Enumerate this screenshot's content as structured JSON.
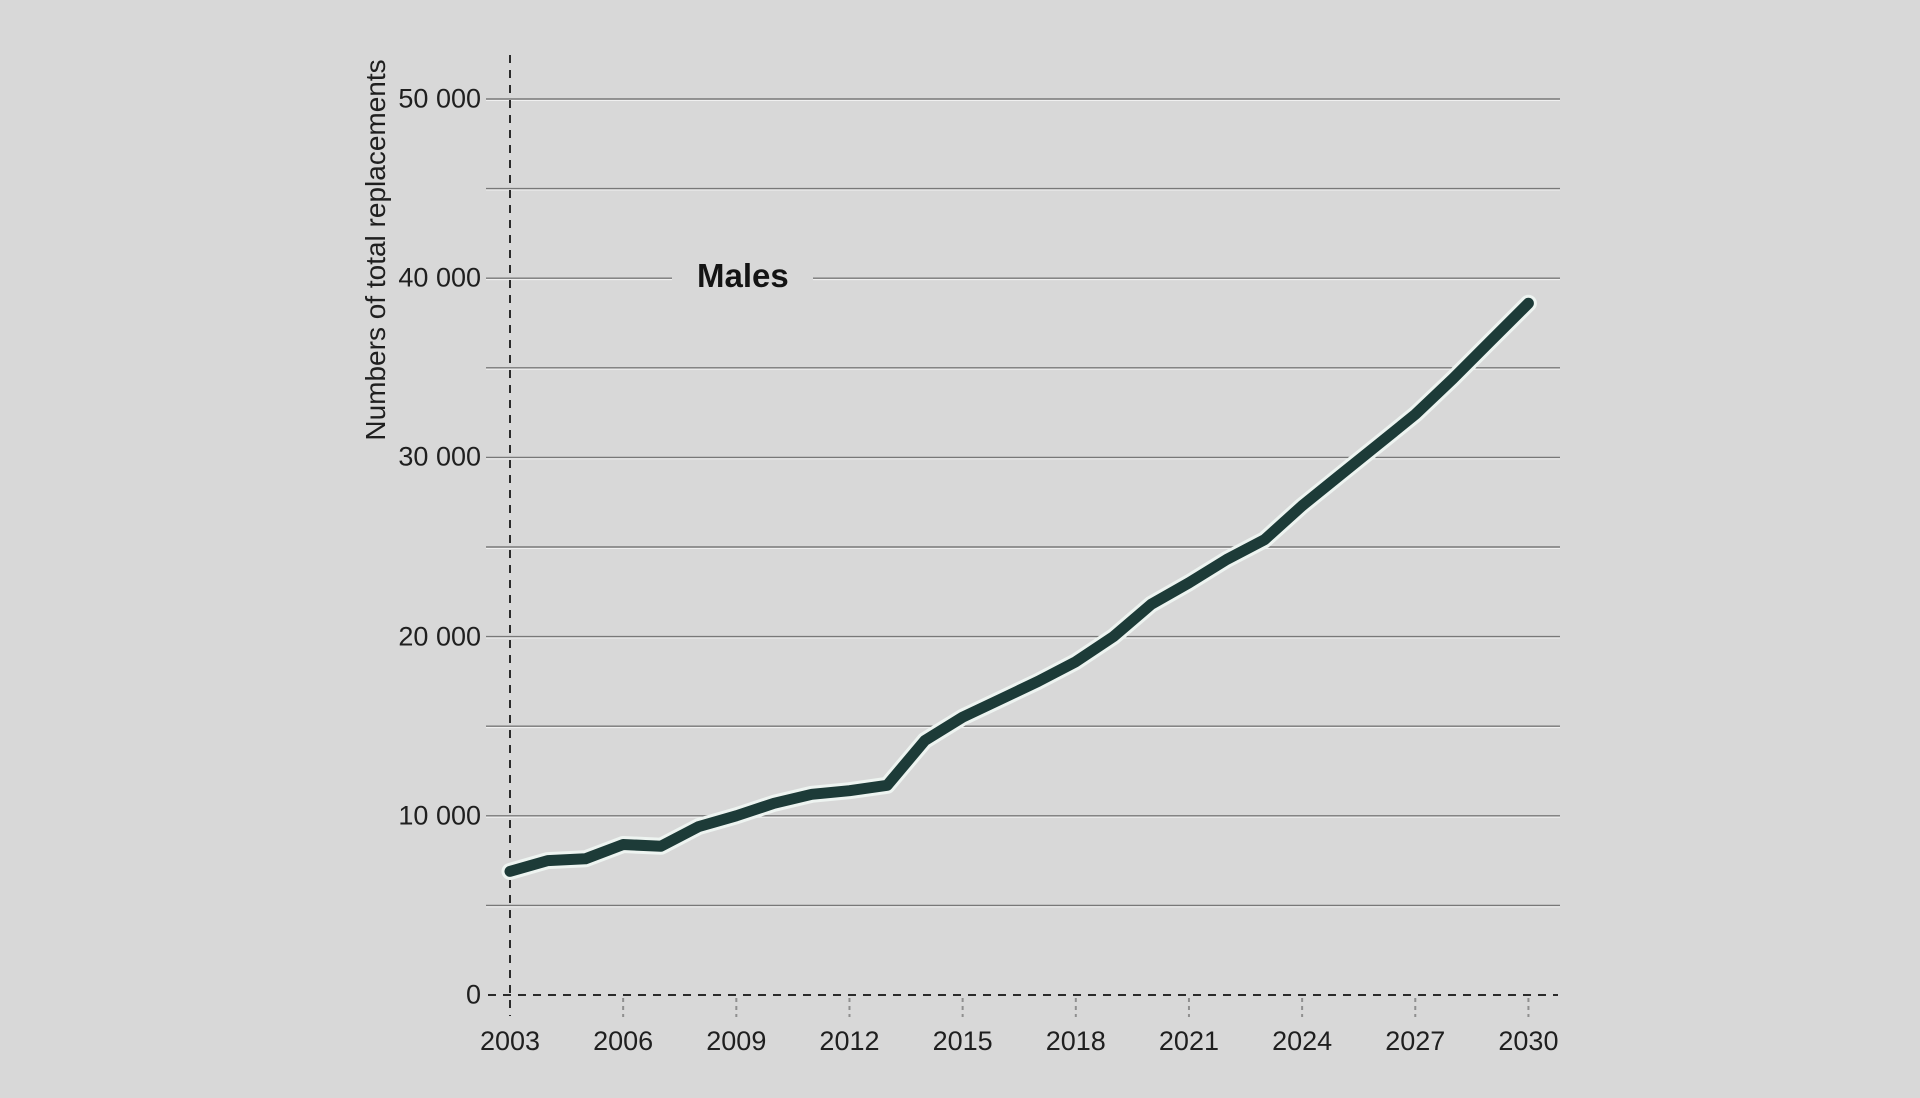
{
  "background_color": "#d8d8d8",
  "text_color": "#1f1f1f",
  "chart_data": {
    "type": "line",
    "title": "",
    "annotation": "Males",
    "ylabel": "Numbers of total replacements",
    "xlabel": "",
    "x": [
      2003,
      2004,
      2005,
      2006,
      2007,
      2008,
      2009,
      2010,
      2011,
      2012,
      2013,
      2014,
      2015,
      2016,
      2017,
      2018,
      2019,
      2020,
      2021,
      2022,
      2023,
      2024,
      2025,
      2026,
      2027,
      2028,
      2029,
      2030
    ],
    "series": [
      {
        "name": "Males",
        "values": [
          6900,
          7500,
          7600,
          8400,
          8300,
          9400,
          10000,
          10700,
          11200,
          11400,
          11700,
          14200,
          15500,
          16500,
          17500,
          18600,
          20000,
          21800,
          23000,
          24300,
          25400,
          27300,
          29000,
          30700,
          32400,
          34400,
          36500,
          38600
        ],
        "color": "#1d3b38",
        "halo_color": "#eef4f1"
      }
    ],
    "xticks": [
      2003,
      2006,
      2009,
      2012,
      2015,
      2018,
      2021,
      2024,
      2027,
      2030
    ],
    "yticks_major": [
      0,
      10000,
      20000,
      30000,
      40000,
      50000
    ],
    "yticks_minor": [
      5000,
      15000,
      25000,
      35000,
      45000
    ],
    "ytick_format": "space thousands separator",
    "xlim": [
      2003,
      2030
    ],
    "ylim": [
      0,
      52000
    ],
    "grid": "horizontal, major and minor",
    "legend_position": "none",
    "axis_style": "dashed x-axis and dashed y-axis",
    "gridline_color": "#787878",
    "gridline_highlight_color": "#f0f0f0",
    "axis_color": "#2b2b2b",
    "minor_xtick_color": "#8f8f8f"
  }
}
